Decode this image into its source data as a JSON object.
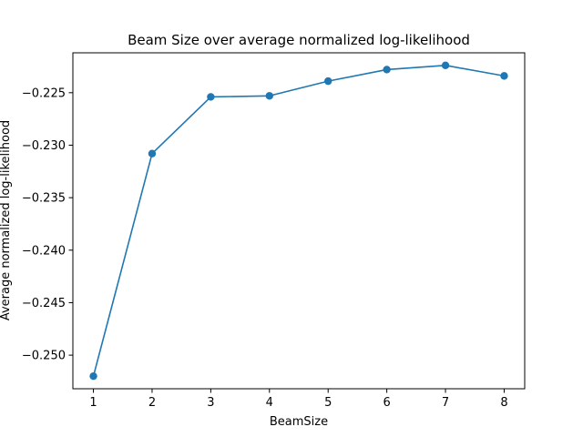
{
  "chart_data": {
    "type": "line",
    "title": "Beam Size over average normalized log-likelihood",
    "xlabel": "BeamSize",
    "ylabel": "Average normalized log-likelihood",
    "x": [
      1,
      2,
      3,
      4,
      5,
      6,
      7,
      8
    ],
    "series": [
      {
        "values": [
          -0.252,
          -0.2308,
          -0.2254,
          -0.2253,
          -0.2239,
          -0.2228,
          -0.2224,
          -0.2234
        ],
        "color": "#1f77b4",
        "marker": "circle"
      }
    ],
    "xlim": [
      0.65,
      8.35
    ],
    "ylim": [
      -0.2532,
      -0.2212
    ],
    "xticks": [
      1,
      2,
      3,
      4,
      5,
      6,
      7,
      8
    ],
    "xtick_labels": [
      "1",
      "2",
      "3",
      "4",
      "5",
      "6",
      "7",
      "8"
    ],
    "yticks": [
      -0.25,
      -0.245,
      -0.24,
      -0.235,
      -0.23,
      -0.225
    ],
    "ytick_labels": [
      "−0.250",
      "−0.245",
      "−0.240",
      "−0.235",
      "−0.230",
      "−0.225"
    ],
    "grid": false,
    "legend": "none"
  }
}
